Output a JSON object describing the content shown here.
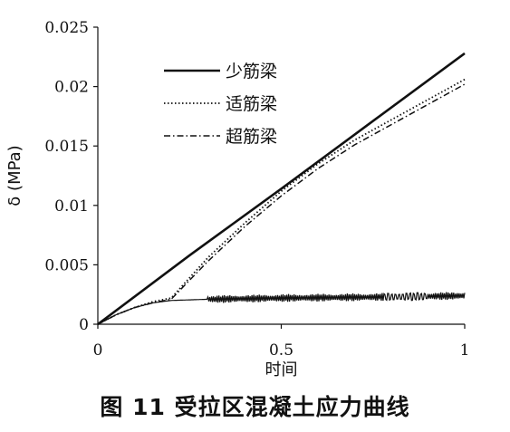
{
  "figure": {
    "caption": "图 11   受拉区混凝土应力曲线"
  },
  "chart_data": {
    "type": "line",
    "xlabel": "时间",
    "ylabel": "δ (MPa)",
    "xlim": [
      0,
      1
    ],
    "ylim": [
      0,
      0.025
    ],
    "xticks": [
      "0",
      "0.5",
      "1"
    ],
    "yticks": [
      "0",
      "0.005",
      "0.01",
      "0.015",
      "0.02",
      "0.025"
    ],
    "grid": false,
    "legend_position": "top-left",
    "series": [
      {
        "name": "少筋梁",
        "style": "solid",
        "color": "#111111",
        "points": [
          [
            0,
            0
          ],
          [
            0.25,
            0.0058
          ],
          [
            0.5,
            0.0114
          ],
          [
            0.75,
            0.0171
          ],
          [
            1.0,
            0.0228
          ]
        ]
      },
      {
        "name": "适筋梁",
        "style": "dotted",
        "color": "#111111",
        "points": [
          [
            0,
            0
          ],
          [
            0.05,
            0.0008
          ],
          [
            0.1,
            0.0014
          ],
          [
            0.15,
            0.0019
          ],
          [
            0.2,
            0.0022
          ],
          [
            0.3,
            0.0056
          ],
          [
            0.4,
            0.0085
          ],
          [
            0.5,
            0.0112
          ],
          [
            0.6,
            0.0135
          ],
          [
            0.7,
            0.0155
          ],
          [
            0.8,
            0.0172
          ],
          [
            0.9,
            0.0189
          ],
          [
            1.0,
            0.0206
          ]
        ]
      },
      {
        "name": "超筋梁",
        "style": "dashdot",
        "color": "#111111",
        "points": [
          [
            0,
            0
          ],
          [
            0.05,
            0.0008
          ],
          [
            0.1,
            0.0014
          ],
          [
            0.15,
            0.0018
          ],
          [
            0.2,
            0.0021
          ],
          [
            0.3,
            0.0053
          ],
          [
            0.4,
            0.0082
          ],
          [
            0.5,
            0.0108
          ],
          [
            0.6,
            0.0131
          ],
          [
            0.7,
            0.0151
          ],
          [
            0.8,
            0.0168
          ],
          [
            0.9,
            0.0185
          ],
          [
            1.0,
            0.0202
          ]
        ]
      },
      {
        "name": "",
        "style": "solid-oscillating",
        "color": "#111111",
        "baseline": [
          [
            0,
            0
          ],
          [
            0.05,
            0.0008
          ],
          [
            0.1,
            0.0014
          ],
          [
            0.15,
            0.0018
          ],
          [
            0.2,
            0.002
          ],
          [
            0.3,
            0.0021
          ],
          [
            0.5,
            0.0022
          ],
          [
            0.8,
            0.0023
          ],
          [
            1.0,
            0.0024
          ]
        ],
        "oscillation_start": 0.3,
        "oscillation_amplitude": 0.0006
      }
    ]
  }
}
